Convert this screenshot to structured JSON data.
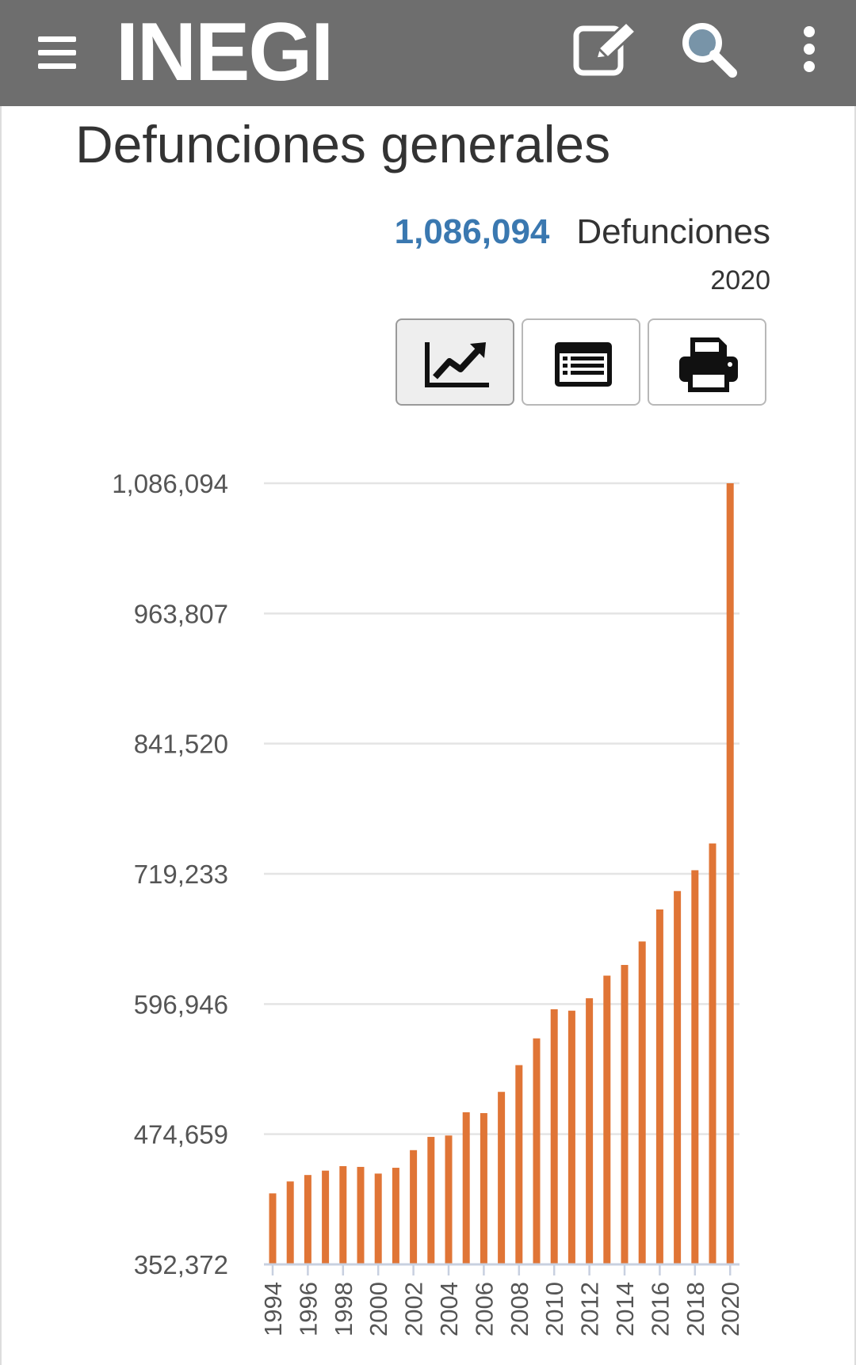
{
  "header": {
    "logo": "INEGI"
  },
  "page": {
    "title": "Defunciones generales",
    "highlight_value": "1,086,094",
    "highlight_unit": "Defunciones",
    "highlight_year": "2020"
  },
  "icons": {
    "menu": "menu-icon",
    "edit": "edit-icon",
    "search": "search-icon",
    "more": "more-vertical-icon",
    "chart_view": "line-chart-icon",
    "table_view": "table-list-icon",
    "print": "print-icon"
  },
  "colors": {
    "header": "#6e6e6e",
    "accent": "#3a78b0",
    "bar": "#e07536"
  },
  "chart_data": {
    "type": "bar",
    "title": "",
    "xlabel": "",
    "ylabel": "",
    "ylim": [
      352372,
      1086094
    ],
    "yticks": [
      352372,
      474659,
      596946,
      719233,
      841520,
      963807,
      1086094
    ],
    "ytick_labels": [
      "352,372",
      "474,659",
      "596,946",
      "719,233",
      "841,520",
      "963,807",
      "1,086,094"
    ],
    "xtick_labels": [
      "1994",
      "1996",
      "1998",
      "2000",
      "2002",
      "2004",
      "2006",
      "2008",
      "2010",
      "2012",
      "2014",
      "2016",
      "2018",
      "2020"
    ],
    "categories": [
      "1994",
      "1995",
      "1996",
      "1997",
      "1998",
      "1999",
      "2000",
      "2001",
      "2002",
      "2003",
      "2004",
      "2005",
      "2006",
      "2007",
      "2008",
      "2009",
      "2010",
      "2011",
      "2012",
      "2013",
      "2014",
      "2015",
      "2016",
      "2017",
      "2018",
      "2019",
      "2020"
    ],
    "values": [
      419074,
      430278,
      436321,
      440437,
      444665,
      443950,
      437667,
      443127,
      459687,
      472140,
      473417,
      495240,
      494471,
      514420,
      539530,
      564673,
      592018,
      590693,
      602354,
      623599,
      633641,
      655688,
      685766,
      703047,
      722611,
      747784,
      1086094
    ],
    "grid": true,
    "legend": "none"
  }
}
